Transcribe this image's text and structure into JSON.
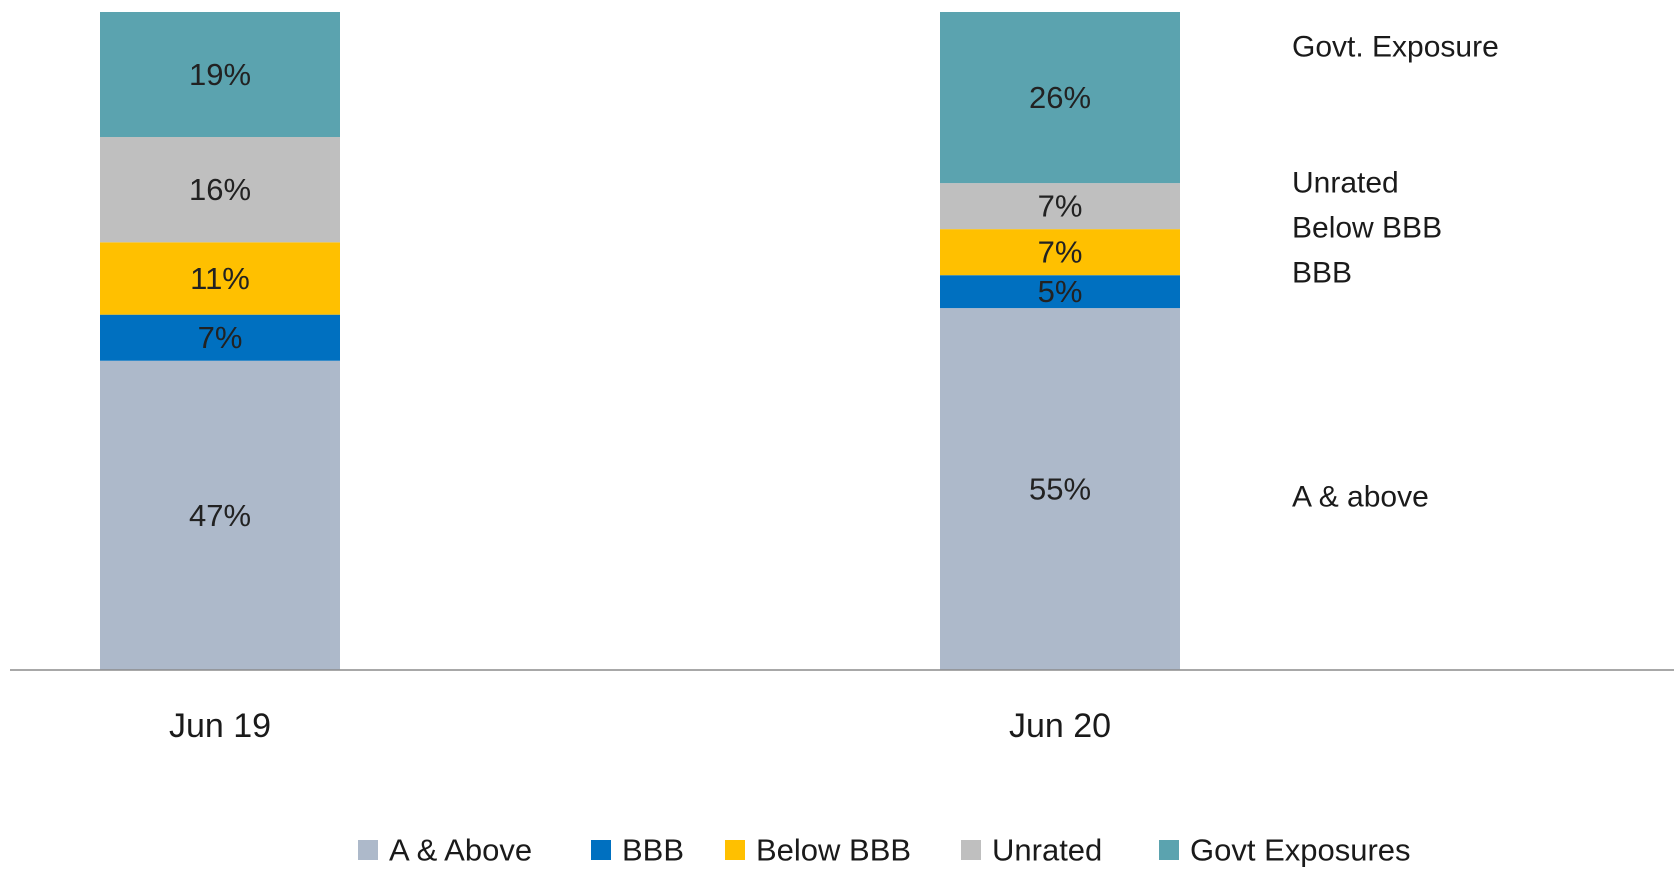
{
  "chart_data": {
    "type": "bar",
    "stacked": true,
    "categories": [
      "Jun 19",
      "Jun 20"
    ],
    "series": [
      {
        "name": "A & Above",
        "values": [
          47,
          55
        ],
        "labels": [
          "47%",
          "55%"
        ],
        "color": "#adb9ca"
      },
      {
        "name": "BBB",
        "values": [
          7,
          5
        ],
        "labels": [
          "7%",
          "5%"
        ],
        "color": "#0070c0"
      },
      {
        "name": "Below BBB",
        "values": [
          11,
          7
        ],
        "labels": [
          "11%",
          "7%"
        ],
        "color": "#ffc000"
      },
      {
        "name": "Unrated",
        "values": [
          16,
          7
        ],
        "labels": [
          "16%",
          "7%"
        ],
        "color": "#bfbfbf"
      },
      {
        "name": "Govt Exposures",
        "values": [
          19,
          26
        ],
        "labels": [
          "19%",
          "26%"
        ],
        "color": "#5ba3af"
      }
    ],
    "side_annotations": [
      "Govt. Exposure",
      "Unrated",
      "Below BBB",
      "BBB",
      "A & above"
    ],
    "ylim": [
      0,
      100
    ],
    "grid": false,
    "legend_position": "bottom",
    "title": "",
    "xlabel": "",
    "ylabel": ""
  }
}
